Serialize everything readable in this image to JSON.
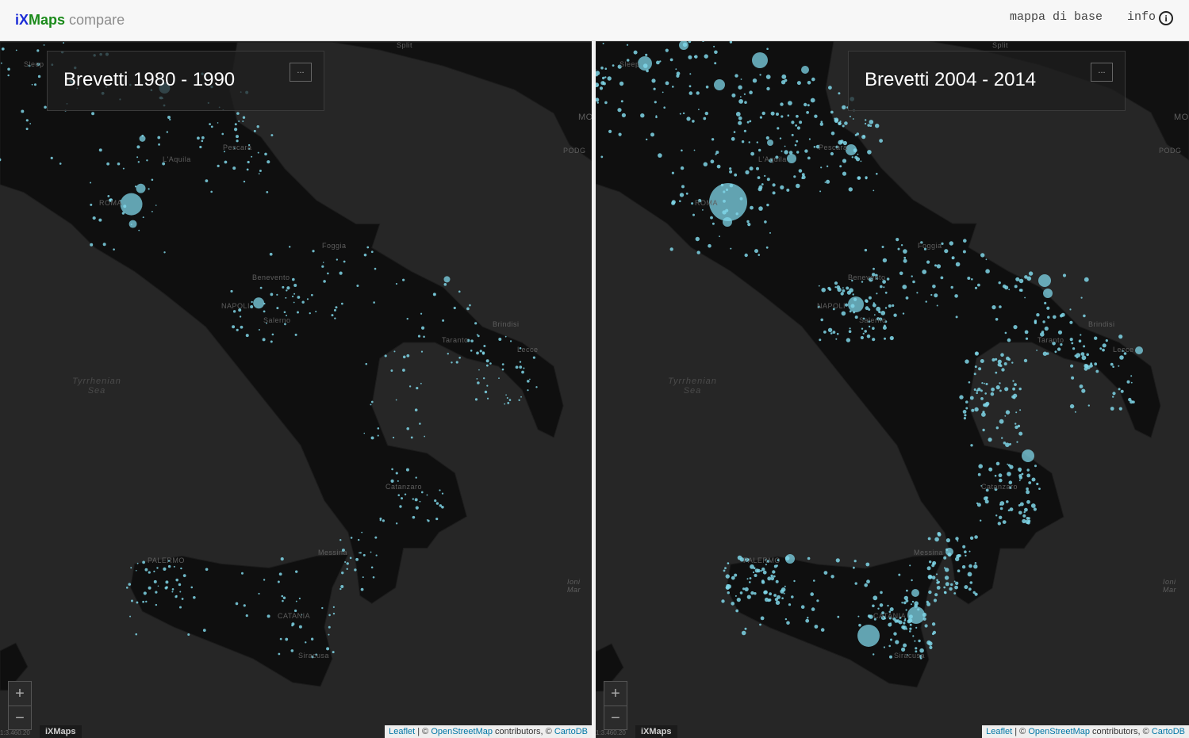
{
  "header": {
    "brand_i": "i",
    "brand_x": "X",
    "brand_maps": "Maps",
    "brand_suffix": "compare",
    "basemap_link": "mappa di base",
    "info_link": "info",
    "info_icon": "i"
  },
  "panels": {
    "left": {
      "title": "Brevetti 1980 - 1990",
      "menu_label": "...",
      "zoom_in": "+",
      "zoom_out": "−",
      "brand": "iXMaps",
      "scale": "1:3.460.20",
      "attribution": {
        "leaflet": "Leaflet",
        "sep": " | © ",
        "osm": "OpenStreetMap",
        "contrib": " contributors, © ",
        "carto": "CartoDB"
      },
      "labels": [
        "Split",
        "Sleep",
        "L'Aquila",
        "Pescara",
        "ROMA",
        "Foggia",
        "Benevento",
        "NAPOLI",
        "Salerno",
        "Brindisi",
        "Taranto",
        "Lecce",
        "Catanzaro",
        "PALERMO",
        "Messina",
        "CATANIA",
        "Siracusa",
        "MO",
        "PODG",
        "Ioni Mar"
      ],
      "sea": "Tyrrhenian Sea"
    },
    "right": {
      "title": "Brevetti 2004 - 2014",
      "menu_label": "...",
      "zoom_in": "+",
      "zoom_out": "−",
      "brand": "iXMaps",
      "scale": "1:3.460.20",
      "attribution": {
        "leaflet": "Leaflet",
        "sep": " | © ",
        "osm": "OpenStreetMap",
        "contrib": " contributors, © ",
        "carto": "CartoDB"
      },
      "labels": [
        "Split",
        "Sleep",
        "L'Aquila",
        "Pescara",
        "ROMA",
        "Foggia",
        "Benevento",
        "NAPOLI",
        "Salerno",
        "Brindisi",
        "Taranto",
        "Lecce",
        "Catanzaro",
        "PALERMO",
        "Messina",
        "CATANIA",
        "Siracusa",
        "MO",
        "PODG",
        "Ioni Mar"
      ],
      "sea": "Tyrrhenian Sea"
    }
  },
  "colors": {
    "land": "#0f0f0f",
    "sea": "#262626",
    "dot": "#7fd6e8"
  }
}
